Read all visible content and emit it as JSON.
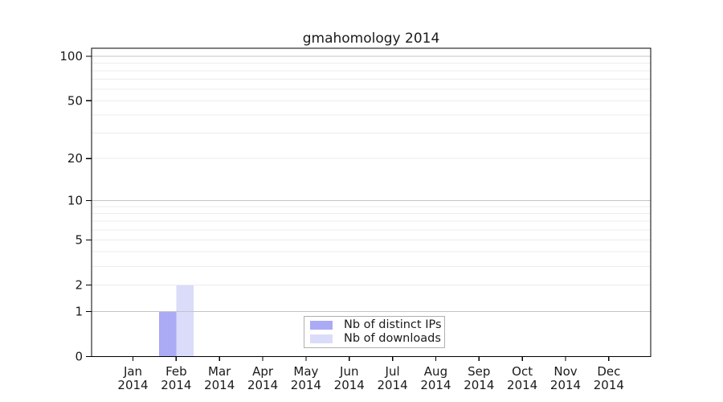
{
  "title": "gmahomology 2014",
  "colors": {
    "bar_distinct_ips": "#abaaf5",
    "bar_downloads": "#dbdbfa",
    "grid_major": "#c4c4c4",
    "grid_minor": "#ececec",
    "axis": "#000000",
    "text": "#1a1a1a",
    "legend_border": "#b0b0b0",
    "legend_bg": "#ffffff"
  },
  "legend": {
    "items": [
      {
        "label": "Nb of distinct IPs",
        "color_key": "bar_distinct_ips"
      },
      {
        "label": "Nb of downloads",
        "color_key": "bar_downloads"
      }
    ]
  },
  "chart_data": {
    "type": "bar",
    "title": "gmahomology 2014",
    "categories": [
      "Jan",
      "Feb",
      "Mar",
      "Apr",
      "May",
      "Jun",
      "Jul",
      "Aug",
      "Sep",
      "Oct",
      "Nov",
      "Dec"
    ],
    "category_year": "2014",
    "series": [
      {
        "name": "Nb of distinct IPs",
        "values": [
          0,
          1,
          0,
          0,
          0,
          0,
          0,
          0,
          0,
          0,
          0,
          0
        ]
      },
      {
        "name": "Nb of downloads",
        "values": [
          0,
          2,
          0,
          0,
          0,
          0,
          0,
          0,
          0,
          0,
          0,
          0
        ]
      }
    ],
    "y_ticks": [
      0,
      1,
      2,
      5,
      10,
      20,
      50,
      100
    ],
    "y_tick_labels": [
      "0",
      "1",
      "2",
      "5",
      "10",
      "20",
      "50",
      "100"
    ],
    "y_scale": "log1p",
    "ylim": [
      0,
      113
    ],
    "grid": "horizontal",
    "grid_minor_values": [
      2,
      3,
      4,
      5,
      6,
      7,
      8,
      9,
      20,
      30,
      40,
      50,
      60,
      70,
      80,
      90
    ],
    "grid_major_values": [
      1,
      10,
      100
    ],
    "legend_position": "bottom-center-inside",
    "xlabel": "",
    "ylabel": ""
  }
}
